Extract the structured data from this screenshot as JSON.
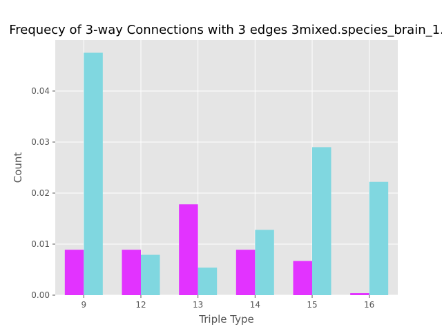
{
  "chart_data": {
    "type": "bar",
    "title": "Frequecy of 3-way Connections with 3 edges 3mixed.species_brain_1.",
    "xlabel": "Triple Type",
    "ylabel": "Count",
    "categories": [
      "9",
      "12",
      "13",
      "14",
      "15",
      "16"
    ],
    "series": [
      {
        "color": "#e233ff",
        "values": [
          0.0089,
          0.0089,
          0.0178,
          0.0089,
          0.0067,
          0.0004
        ]
      },
      {
        "color": "#80d7e0",
        "values": [
          0.0475,
          0.0079,
          0.0054,
          0.0128,
          0.029,
          0.0222
        ]
      }
    ],
    "ylim": [
      0,
      0.05
    ],
    "yticks": [
      "0.00",
      "0.01",
      "0.02",
      "0.03",
      "0.04"
    ],
    "grid": true,
    "legend": "none",
    "background_color": "#e5e5e5",
    "grid_color": "#ffffff"
  }
}
